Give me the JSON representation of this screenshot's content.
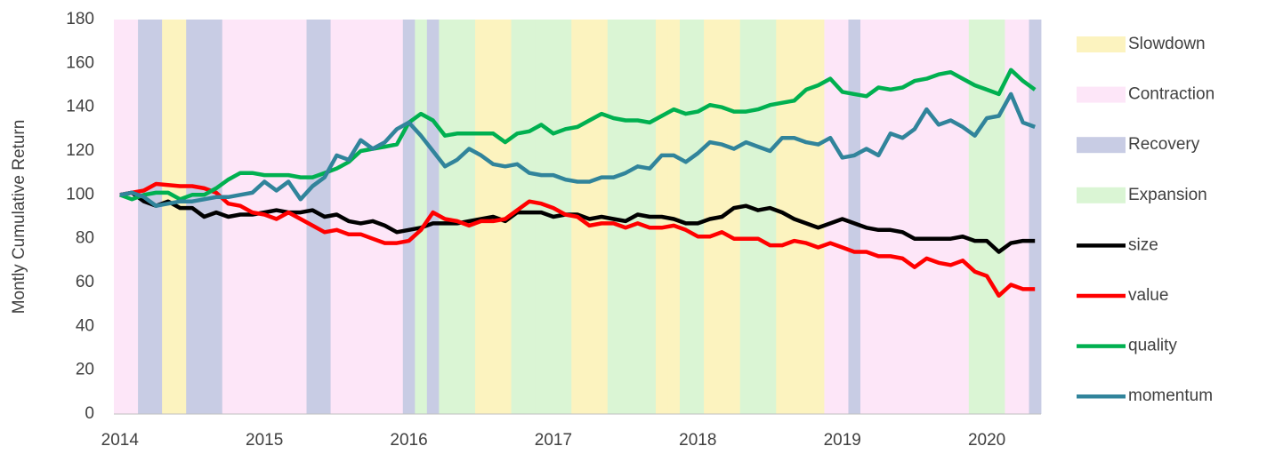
{
  "chart_data": {
    "type": "line",
    "y_label": "Montly Cumulative Return",
    "categories": [
      "2014",
      null,
      null,
      null,
      null,
      null,
      null,
      null,
      null,
      null,
      null,
      null,
      "2015",
      null,
      null,
      null,
      null,
      null,
      null,
      null,
      null,
      null,
      null,
      null,
      "2016",
      null,
      null,
      null,
      null,
      null,
      null,
      null,
      null,
      null,
      null,
      null,
      "2017",
      null,
      null,
      null,
      null,
      null,
      null,
      null,
      null,
      null,
      null,
      null,
      "2018",
      null,
      null,
      null,
      null,
      null,
      null,
      null,
      null,
      null,
      null,
      null,
      "2019",
      null,
      null,
      null,
      null,
      null,
      null,
      null,
      null,
      null,
      null,
      null,
      "2020",
      null,
      null,
      null,
      null
    ],
    "ylim": [
      0,
      180
    ],
    "yticks": [
      0,
      20,
      40,
      60,
      80,
      100,
      120,
      140,
      160,
      180
    ],
    "grid": false,
    "regimes": [
      {
        "name": "Slowdown",
        "color": "#fcf3bf"
      },
      {
        "name": "Contraction",
        "color": "#fde6f8"
      },
      {
        "name": "Recovery",
        "color": "#c8cce4"
      },
      {
        "name": "Expansion",
        "color": "#daf5d4"
      }
    ],
    "regime": [
      1,
      1,
      2,
      2,
      0,
      0,
      2,
      2,
      2,
      1,
      1,
      1,
      1,
      1,
      1,
      1,
      2,
      2,
      1,
      1,
      1,
      1,
      1,
      1,
      2,
      3,
      2,
      3,
      3,
      3,
      0,
      0,
      0,
      3,
      3,
      3,
      3,
      3,
      0,
      0,
      0,
      3,
      3,
      3,
      3,
      0,
      0,
      3,
      3,
      0,
      0,
      0,
      3,
      3,
      3,
      0,
      0,
      0,
      0,
      1,
      1,
      2,
      1,
      1,
      1,
      1,
      1,
      1,
      1,
      1,
      1,
      3,
      3,
      3,
      1,
      1,
      2
    ],
    "series": [
      {
        "name": "size",
        "color": "#000000",
        "values": [
          100,
          101,
          97,
          95,
          97,
          94,
          94,
          90,
          92,
          90,
          91,
          91,
          92,
          93,
          92,
          92,
          93,
          90,
          91,
          88,
          87,
          88,
          86,
          83,
          84,
          85,
          87,
          87,
          87,
          88,
          89,
          90,
          88,
          92,
          92,
          92,
          90,
          91,
          91,
          89,
          90,
          89,
          88,
          91,
          90,
          90,
          89,
          87,
          87,
          89,
          90,
          94,
          95,
          93,
          94,
          92,
          89,
          87,
          85,
          87,
          89,
          87,
          85,
          84,
          84,
          83,
          80,
          80,
          80,
          80,
          81,
          79,
          79,
          74,
          78,
          79,
          79
        ]
      },
      {
        "name": "value",
        "color": "#ff0000",
        "values": [
          100,
          101,
          102,
          105,
          104.5,
          104,
          104,
          103,
          101,
          96,
          95,
          92,
          91,
          89,
          92,
          89,
          86,
          83,
          84,
          82,
          82,
          80,
          78,
          78,
          79,
          84,
          92,
          89,
          88,
          86,
          88,
          88,
          89,
          93,
          97,
          96,
          94,
          91,
          90,
          86,
          87,
          87,
          85,
          87,
          85,
          85,
          86,
          84,
          81,
          81,
          83,
          80,
          80,
          80,
          77,
          77,
          79,
          78,
          76,
          78,
          76,
          74,
          74,
          72,
          72,
          71,
          67,
          71,
          69,
          68,
          70,
          65,
          63,
          54,
          59,
          57,
          57
        ]
      },
      {
        "name": "quality",
        "color": "#00b050",
        "values": [
          100,
          98,
          100,
          101,
          101,
          98,
          100,
          100,
          103,
          107,
          110,
          110,
          109,
          109,
          109,
          108,
          108,
          110,
          112,
          115,
          120,
          121,
          122,
          123,
          133,
          137,
          134,
          127,
          128,
          128,
          128,
          128,
          124,
          128,
          129,
          132,
          128,
          130,
          131,
          134,
          137,
          135,
          134,
          134,
          133,
          136,
          139,
          137,
          138,
          141,
          140,
          138,
          138,
          139,
          141,
          142,
          143,
          148,
          150,
          153,
          147,
          146,
          145,
          149,
          148,
          149,
          152,
          153,
          155,
          156,
          153,
          150,
          148,
          146,
          157,
          152,
          148
        ]
      },
      {
        "name": "momentum",
        "color": "#31849b",
        "values": [
          100,
          101,
          99,
          95,
          96,
          97,
          97,
          98,
          99,
          99,
          100,
          101,
          106,
          102,
          106,
          98,
          104,
          108,
          118,
          116,
          125,
          121,
          124,
          130,
          133,
          127,
          120,
          113,
          116,
          121,
          118,
          114,
          113,
          114,
          110,
          109,
          109,
          107,
          106,
          106,
          108,
          108,
          110,
          113,
          112,
          118,
          118,
          115,
          119,
          124,
          123,
          121,
          124,
          122,
          120,
          126,
          126,
          124,
          123,
          126,
          117,
          118,
          121,
          118,
          128,
          126,
          130,
          139,
          132,
          134,
          131,
          127,
          135,
          136,
          146,
          133,
          131
        ]
      }
    ]
  }
}
